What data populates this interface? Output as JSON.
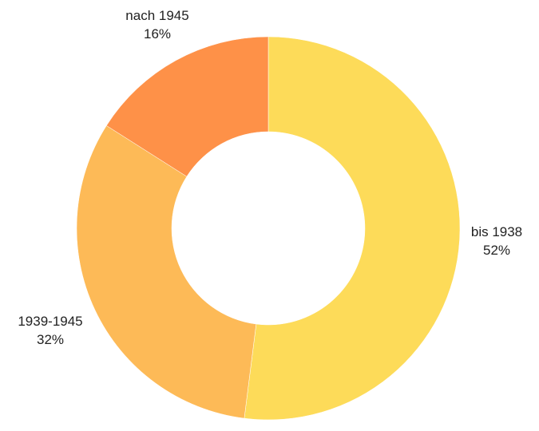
{
  "chart_data": {
    "type": "pie",
    "variant": "donut",
    "title": "",
    "categories": [
      "bis 1938",
      "1939-1945",
      "nach 1945"
    ],
    "values": [
      52,
      32,
      16
    ],
    "value_labels": [
      "52%",
      "32%",
      "16%"
    ],
    "unit": "%",
    "colors": [
      "#FDDB59",
      "#FDBA57",
      "#FE9148"
    ],
    "start_angle_deg": 0,
    "direction": "clockwise",
    "legend": "none",
    "label_placement": "outside"
  }
}
